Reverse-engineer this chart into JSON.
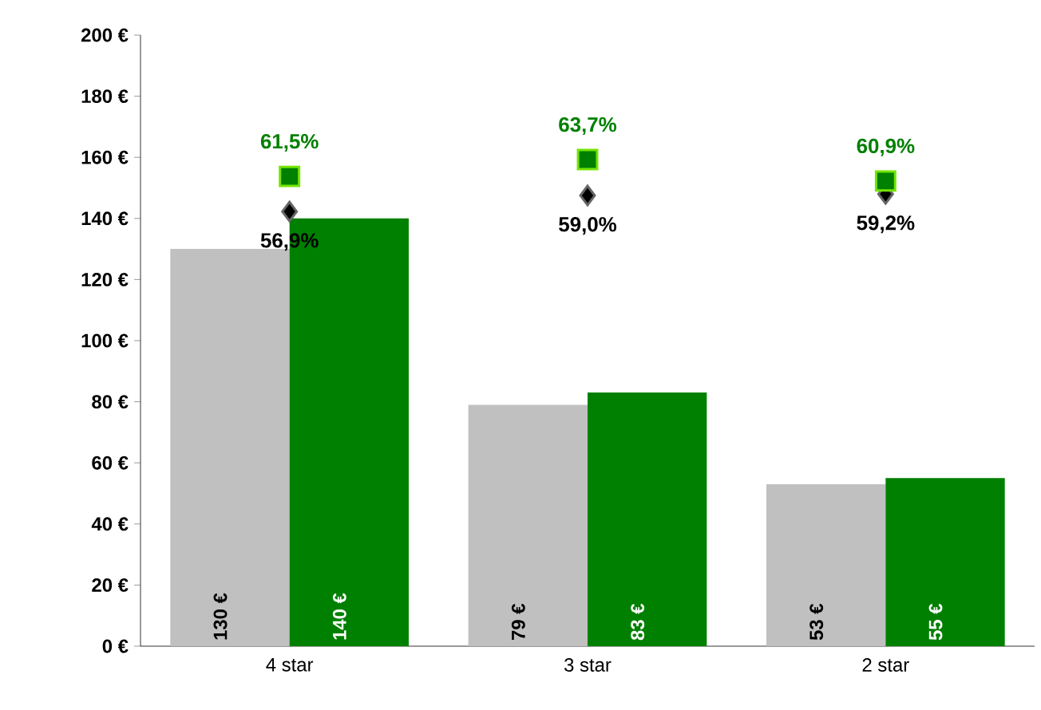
{
  "chart_data": {
    "type": "bar",
    "categories": [
      "4 star",
      "3 star",
      "2 star"
    ],
    "series": [
      {
        "color": "#c0c0c0",
        "values": [
          130,
          79,
          53
        ],
        "value_labels": [
          "130 €",
          "79 €",
          "53 €"
        ]
      },
      {
        "color": "#008000",
        "values": [
          140,
          83,
          55
        ],
        "value_labels": [
          "140 €",
          "83 €",
          "55 €"
        ]
      },
      {
        "type": "scatter",
        "axis": "y2",
        "marker": "diamond",
        "color": "#000000",
        "values": [
          56.9,
          59.0,
          59.2
        ],
        "value_labels": [
          "56,9%",
          "59,0%",
          "59,2%"
        ]
      },
      {
        "type": "scatter",
        "axis": "y2",
        "marker": "square",
        "color": "#008000",
        "values": [
          61.5,
          63.7,
          60.9
        ],
        "value_labels": [
          "61,5%",
          "63,7%",
          "60,9%"
        ]
      }
    ],
    "ylim": [
      0,
      200
    ],
    "yticks": [
      {
        "value": 0,
        "label": "0 €"
      },
      {
        "value": 20,
        "label": "20 €"
      },
      {
        "value": 40,
        "label": "40 €"
      },
      {
        "value": 60,
        "label": "60 €"
      },
      {
        "value": 80,
        "label": "80 €"
      },
      {
        "value": 100,
        "label": "100 €"
      },
      {
        "value": 120,
        "label": "120 €"
      },
      {
        "value": 140,
        "label": "140 €"
      },
      {
        "value": 160,
        "label": "160 €"
      },
      {
        "value": 180,
        "label": "180 €"
      },
      {
        "value": 200,
        "label": "200 €"
      }
    ],
    "y2lim": [
      0,
      80
    ],
    "grid": false
  }
}
